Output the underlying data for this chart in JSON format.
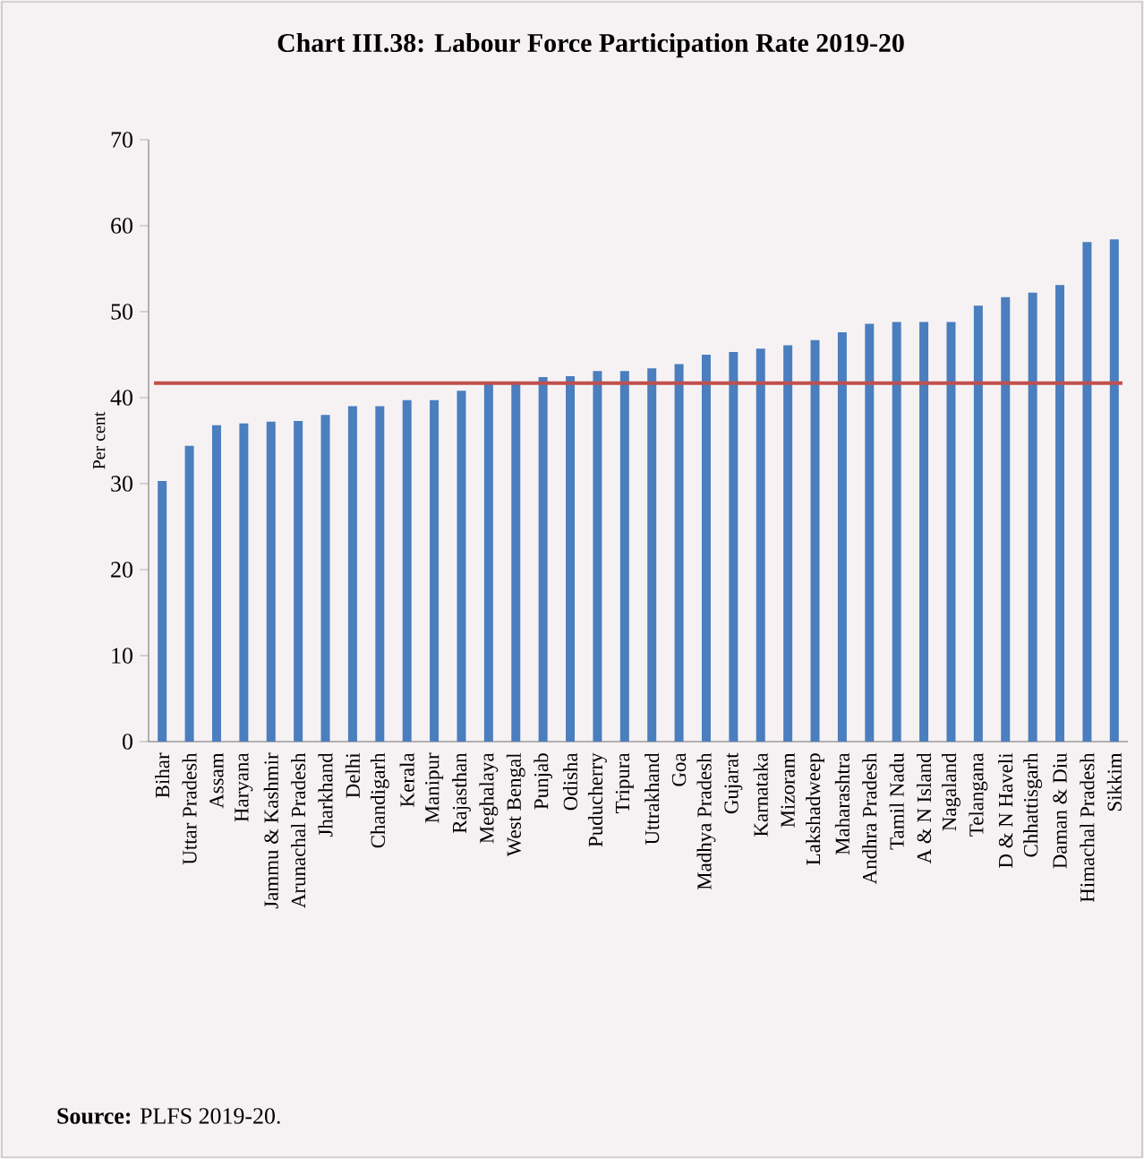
{
  "chart_data": {
    "type": "bar",
    "title": "Chart III.38: Labour Force Participation Rate 2019-20",
    "ylabel": "Per cent",
    "categories": [
      "Bihar",
      "Uttar Pradesh",
      "Assam",
      "Haryana",
      "Jammu & Kashmir",
      "Arunachal Pradesh",
      "Jharkhand",
      "Delhi",
      "Chandigarh",
      "Kerala",
      "Manipur",
      "Rajasthan",
      "Meghalaya",
      "West Bengal",
      "Punjab",
      "Odisha",
      "Puducherry",
      "Tripura",
      "Uttrakhand",
      "Goa",
      "Madhya Pradesh",
      "Gujarat",
      "Karnataka",
      "Mizoram",
      "Lakshadweep",
      "Maharashtra",
      "Andhra Pradesh",
      "Tamil Nadu",
      "A & N Island",
      "Nagaland",
      "Telangana",
      "D & N Haveli",
      "Chhattisgarh",
      "Daman & Diu",
      "Himachal Pradesh",
      "Sikkim"
    ],
    "values": [
      30.3,
      34.4,
      36.8,
      37.0,
      37.2,
      37.3,
      38.0,
      39.0,
      39.0,
      39.7,
      39.7,
      40.8,
      41.7,
      41.8,
      42.4,
      42.5,
      43.1,
      43.1,
      43.4,
      43.9,
      45.0,
      45.3,
      45.7,
      46.1,
      46.7,
      47.6,
      48.6,
      48.8,
      48.8,
      48.8,
      50.7,
      51.7,
      52.2,
      53.1,
      58.1,
      58.4
    ],
    "color": "#4a7ebf",
    "ylim": [
      0,
      70
    ],
    "yticks": [
      0,
      10,
      20,
      30,
      40,
      50,
      60,
      70
    ],
    "ref_lines": [
      {
        "axis": "y",
        "value": 41.7,
        "color": "#c0504d"
      }
    ],
    "annotations": [
      "**Source:** PLFS 2019-20."
    ]
  }
}
